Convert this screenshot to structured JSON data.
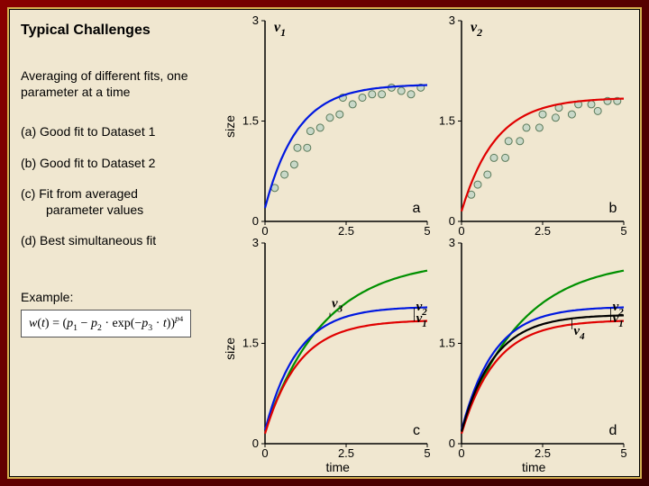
{
  "frame": {
    "outer_gradient": [
      "#8a0000",
      "#5a0000",
      "#3a0000"
    ],
    "border_color": "#d4b050",
    "background_color": "#f0e7d0"
  },
  "left": {
    "title": "Typical Challenges",
    "para": "Averaging of different fits, one parameter at a time",
    "items": [
      "(a) Good fit to Dataset 1",
      "(b) Good fit to Dataset 2",
      "(c) Fit from averaged",
      "parameter values",
      "(d) Best simultaneous fit"
    ],
    "example_label": "Example:",
    "formula_plain": "w(t) = (p1 − p2 · exp(−p3 · t))^p4"
  },
  "axes": {
    "ylabel": "size",
    "xlabel": "time",
    "xlim": [
      0,
      5
    ],
    "ylim": [
      0,
      3
    ],
    "xticks": [
      0,
      2.5,
      5
    ],
    "yticks": [
      0,
      1.5,
      3
    ],
    "tick_fontsize": 13,
    "axis_color": "#000000",
    "line_width": 2.2
  },
  "data": {
    "scatter1": {
      "x": [
        0.3,
        0.6,
        0.9,
        1.0,
        1.3,
        1.4,
        1.7,
        2.0,
        2.3,
        2.4,
        2.7,
        3.0,
        3.3,
        3.6,
        3.9,
        4.2,
        4.5,
        4.8
      ],
      "y": [
        0.5,
        0.7,
        0.85,
        1.1,
        1.1,
        1.35,
        1.4,
        1.55,
        1.6,
        1.85,
        1.75,
        1.85,
        1.9,
        1.9,
        2.0,
        1.95,
        1.9,
        2.0
      ],
      "marker_fill": "#c8d8c8",
      "marker_stroke": "#5a7a5a",
      "marker_r": 4
    },
    "scatter2": {
      "x": [
        0.3,
        0.5,
        0.8,
        1.0,
        1.35,
        1.45,
        1.8,
        2.0,
        2.4,
        2.5,
        2.9,
        3.0,
        3.4,
        3.6,
        4.0,
        4.2,
        4.5,
        4.8
      ],
      "y": [
        0.4,
        0.55,
        0.7,
        0.95,
        0.95,
        1.2,
        1.2,
        1.4,
        1.4,
        1.6,
        1.55,
        1.7,
        1.6,
        1.75,
        1.75,
        1.65,
        1.8,
        1.8
      ],
      "marker_fill": "#c8d8c8",
      "marker_stroke": "#5a7a5a",
      "marker_r": 4
    },
    "v1": {
      "color": "#0018e0",
      "p1": 2.05,
      "p2": 1.85,
      "p3": 1.0,
      "p4": 1.0
    },
    "v2": {
      "color": "#e00000",
      "p1": 1.85,
      "p2": 1.7,
      "p3": 0.95,
      "p4": 1.0
    },
    "v3": {
      "color": "#009000",
      "p1": 2.75,
      "p2": 2.55,
      "p3": 0.55,
      "p4": 1.0
    },
    "v4": {
      "color": "#000000",
      "p1": 1.93,
      "p2": 1.75,
      "p3": 1.0,
      "p4": 1.0
    }
  },
  "panels": {
    "a": {
      "corner_label": "a",
      "corner_label_pos": "br",
      "top_left_label": "v",
      "top_left_sub": "1",
      "scatter": "scatter1",
      "curves": [
        "v1"
      ]
    },
    "b": {
      "corner_label": "b",
      "corner_label_pos": "br",
      "top_left_label": "v",
      "top_left_sub": "2",
      "scatter": "scatter2",
      "curves": [
        "v2"
      ]
    },
    "c": {
      "corner_label": "c",
      "corner_label_pos": "br",
      "curves": [
        "v3",
        "v1",
        "v2"
      ],
      "curve_labels": [
        {
          "text": "v",
          "sub": "3",
          "curve": "v3",
          "x": 2.0,
          "dy": -10
        },
        {
          "text": "v",
          "sub": "2",
          "curve": "v2",
          "x": 4.6,
          "dy": -12
        },
        {
          "text": "v",
          "sub": "1",
          "curve": "v1",
          "x": 4.6,
          "dy": 16
        }
      ]
    },
    "d": {
      "corner_label": "d",
      "corner_label_pos": "br",
      "curves": [
        "v3",
        "v1",
        "v2",
        "v4"
      ],
      "curve_labels": [
        {
          "text": "v",
          "sub": "2",
          "curve": "v2",
          "x": 4.6,
          "dy": -12
        },
        {
          "text": "v",
          "sub": "1",
          "curve": "v1",
          "x": 4.6,
          "dy": 16
        },
        {
          "text": "v",
          "sub": "4",
          "curve": "v4",
          "x": 3.4,
          "dy": 18
        }
      ]
    }
  }
}
